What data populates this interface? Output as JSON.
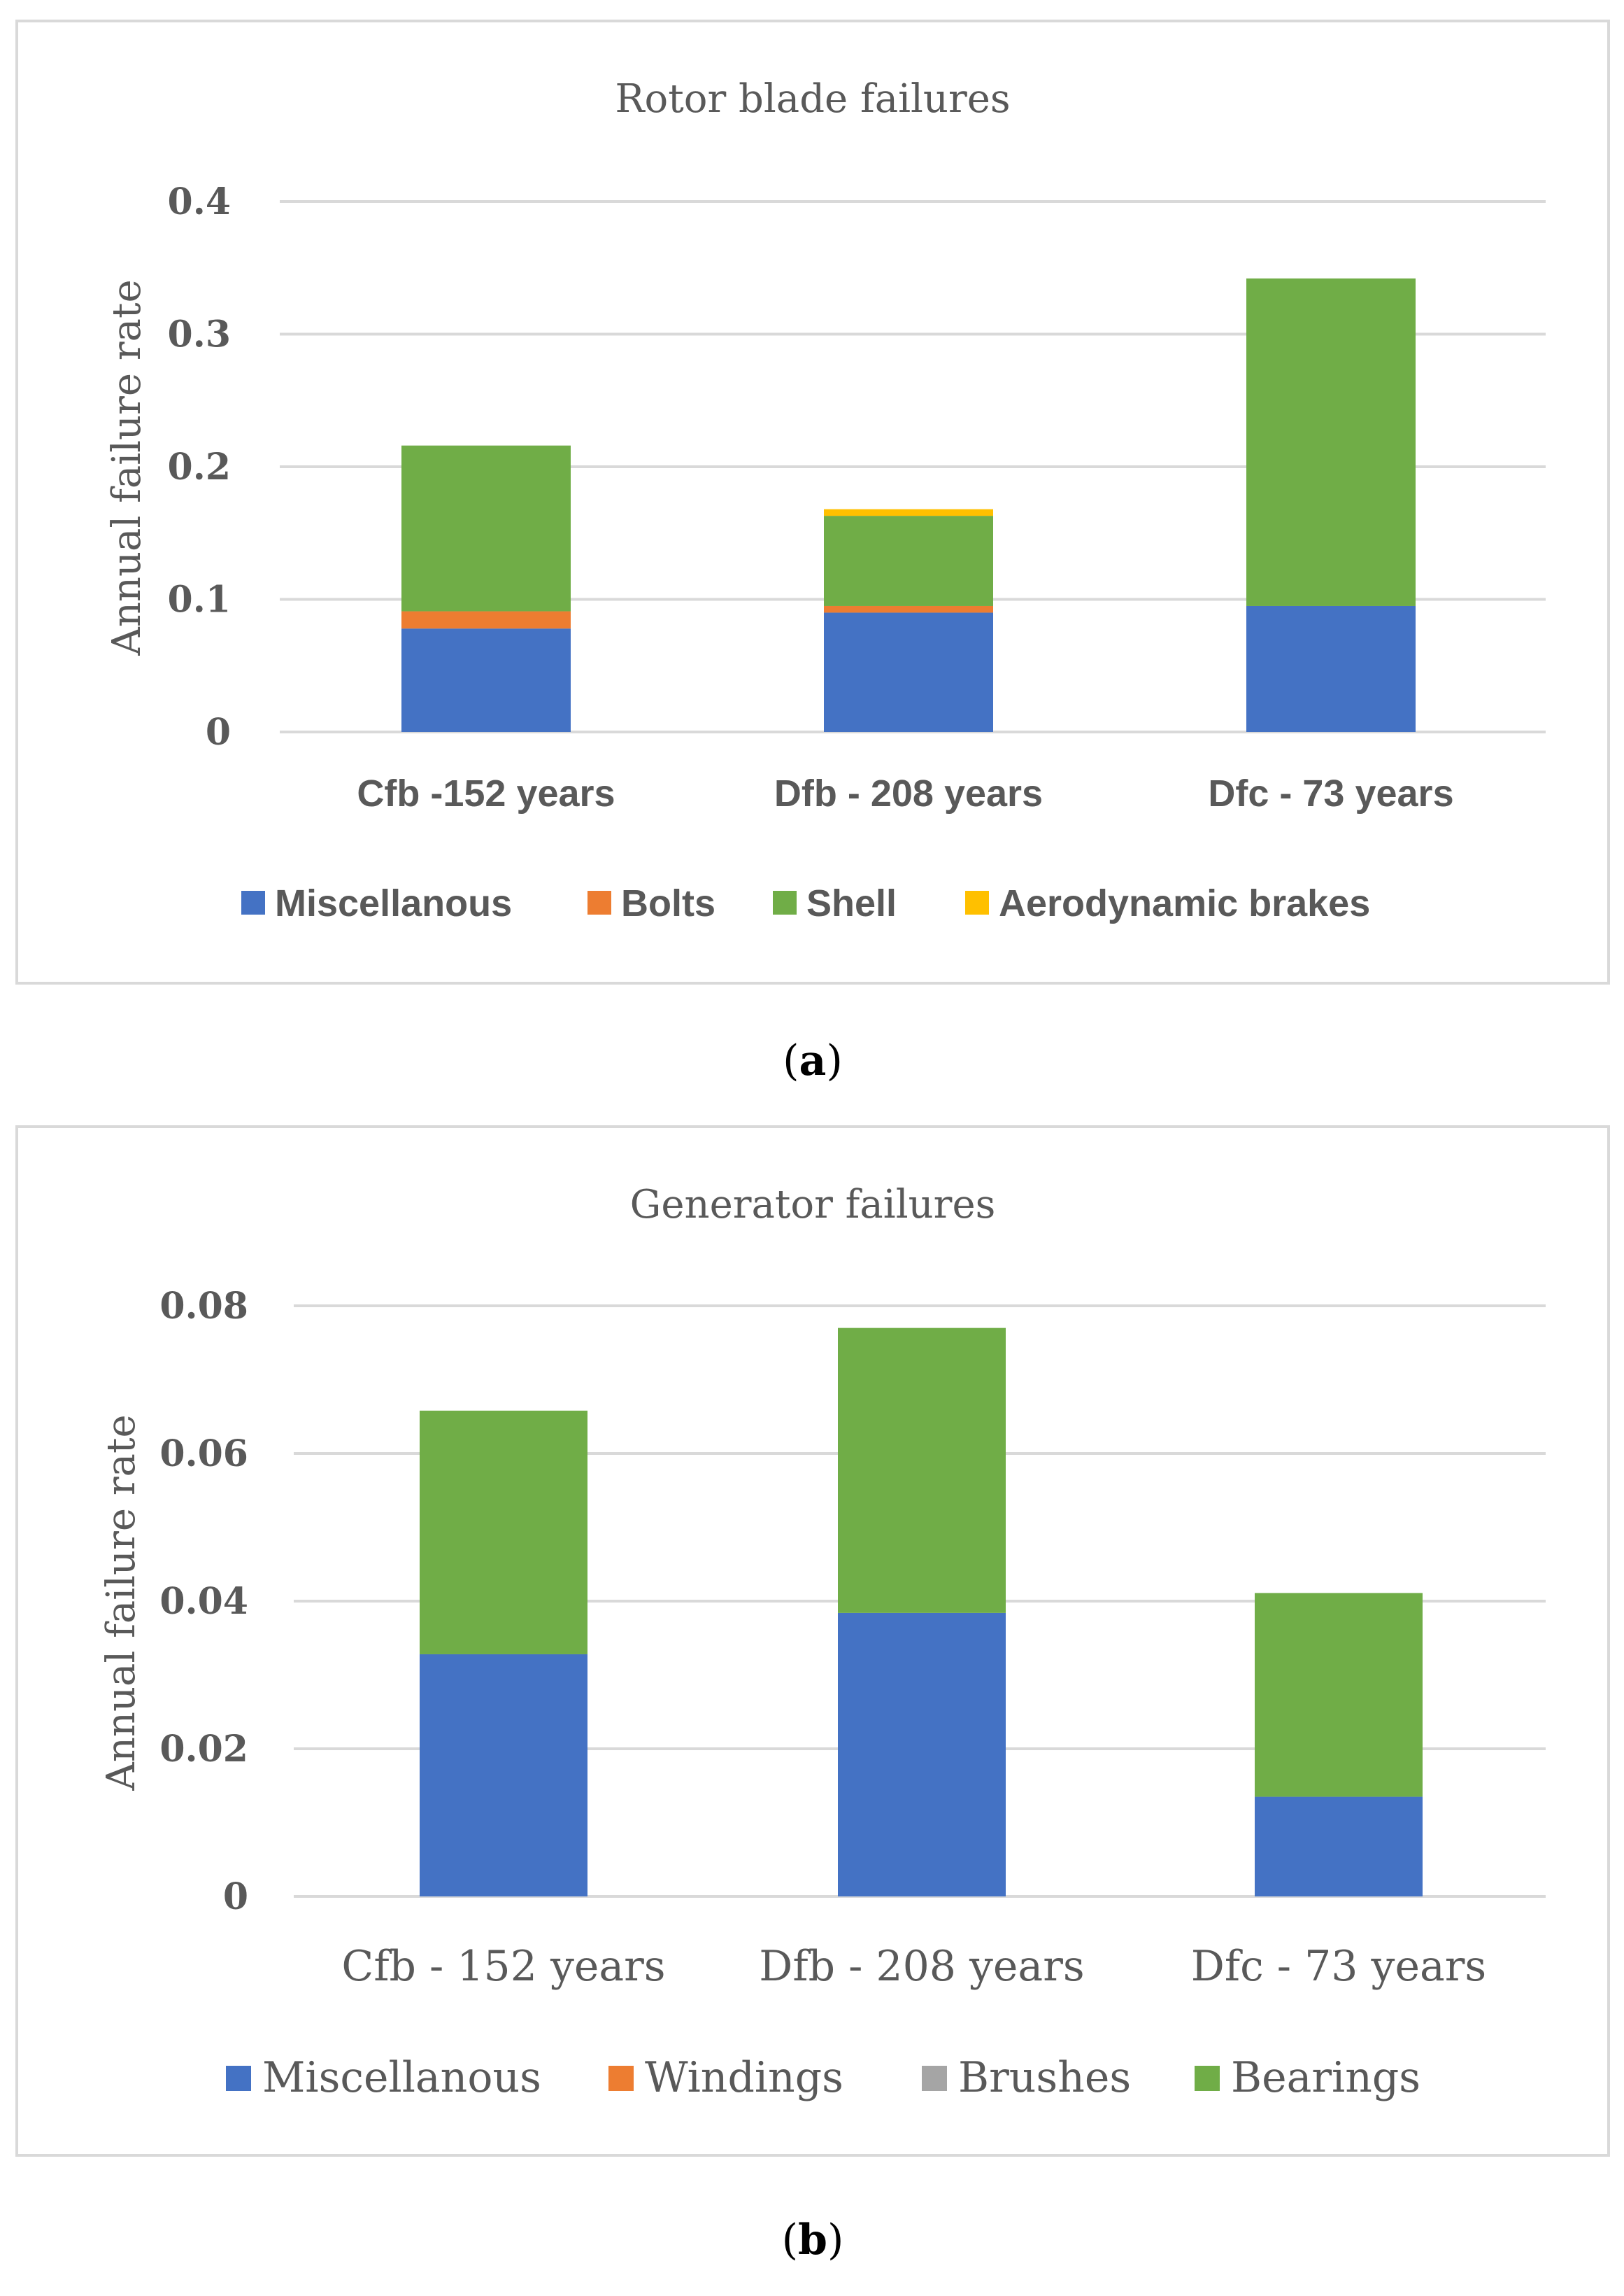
{
  "captions": {
    "a_open": "(",
    "a_letter": "a",
    "a_close": ")",
    "b_open": "(",
    "b_letter": "b",
    "b_close": ")"
  },
  "chart_data": [
    {
      "type": "bar",
      "stacked": true,
      "title": "Rotor blade failures",
      "xlabel": "",
      "ylabel": "Annual failure rate",
      "ylim": [
        0,
        0.4
      ],
      "yticks": [
        0,
        0.1,
        0.2,
        0.3,
        0.4
      ],
      "ytick_labels": [
        "0",
        "0.1",
        "0.2",
        "0.3",
        "0.4"
      ],
      "categories": [
        "Cfb -152 years",
        "Dfb - 208 years",
        "Dfc - 73 years"
      ],
      "series": [
        {
          "name": "Miscellanous",
          "color": "#4472C4",
          "values": [
            0.078,
            0.09,
            0.095
          ]
        },
        {
          "name": "Bolts",
          "color": "#ED7D31",
          "values": [
            0.013,
            0.005,
            0.0
          ]
        },
        {
          "name": "Shell",
          "color": "#70AD47",
          "values": [
            0.125,
            0.068,
            0.247
          ]
        },
        {
          "name": "Aerodynamic brakes",
          "color": "#FFC000",
          "values": [
            0.0,
            0.005,
            0.0
          ]
        }
      ],
      "legend_position": "bottom"
    },
    {
      "type": "bar",
      "stacked": true,
      "title": "Generator failures",
      "xlabel": "",
      "ylabel": "Annual failure rate",
      "ylim": [
        0,
        0.08
      ],
      "yticks": [
        0,
        0.02,
        0.04,
        0.06,
        0.08
      ],
      "ytick_labels": [
        "0",
        "0.02",
        "0.04",
        "0.06",
        "0.08"
      ],
      "categories": [
        "Cfb - 152 years",
        "Dfb - 208 years",
        "Dfc - 73 years"
      ],
      "series": [
        {
          "name": "Miscellanous",
          "color": "#4472C4",
          "values": [
            0.0328,
            0.0384,
            0.0135
          ]
        },
        {
          "name": "Windings",
          "color": "#ED7D31",
          "values": [
            0,
            0,
            0
          ]
        },
        {
          "name": "Brushes",
          "color": "#A5A5A5",
          "values": [
            0,
            0,
            0
          ]
        },
        {
          "name": "Bearings",
          "color": "#70AD47",
          "values": [
            0.033,
            0.0386,
            0.0276
          ]
        }
      ],
      "legend_position": "bottom"
    }
  ]
}
